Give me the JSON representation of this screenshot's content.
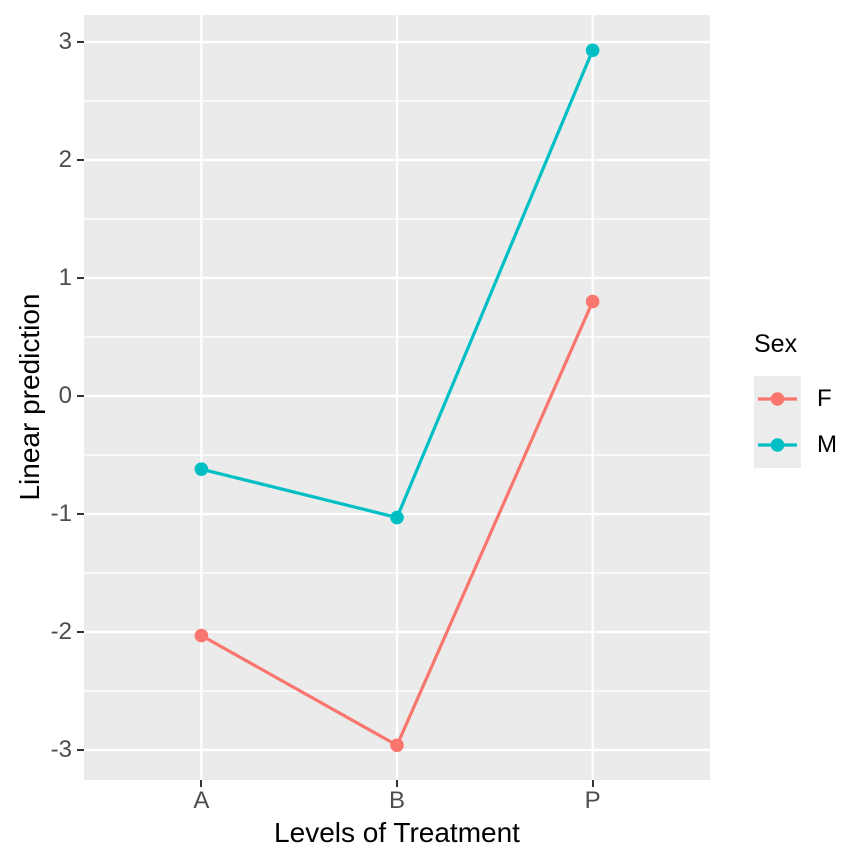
{
  "figure": {
    "background": "#FFFFFF"
  },
  "chart_data": {
    "type": "line",
    "title": "",
    "xlabel": "Levels of Treatment",
    "ylabel": "Linear prediction",
    "categories": [
      "A",
      "B",
      "P"
    ],
    "series": [
      {
        "name": "F",
        "color": "#F8766D",
        "values": [
          -2.03,
          -2.96,
          0.8
        ]
      },
      {
        "name": "M",
        "color": "#00BFC4",
        "values": [
          -0.62,
          -1.03,
          2.93
        ]
      }
    ],
    "ylim": [
      -3.25,
      3.25
    ],
    "yticks": [
      3,
      2,
      1,
      0,
      -1,
      -2,
      -3
    ],
    "yticks_minor": [
      2.5,
      1.5,
      0.5,
      -0.5,
      -1.5,
      -2.5
    ],
    "grid": {
      "major_color": "#FFFFFF",
      "minor_color": "#FFFFFF",
      "vertical_gridlines": "at-categories-only"
    },
    "panel_background": "#EBEBEB",
    "legend": {
      "title": "Sex",
      "position": "right",
      "entries": [
        "F",
        "M"
      ],
      "key_background": "#ECECEC"
    },
    "colors": {
      "tick_label": "#4D4D4D",
      "axis_title": "#000000",
      "tick_mark": "#333333"
    }
  }
}
